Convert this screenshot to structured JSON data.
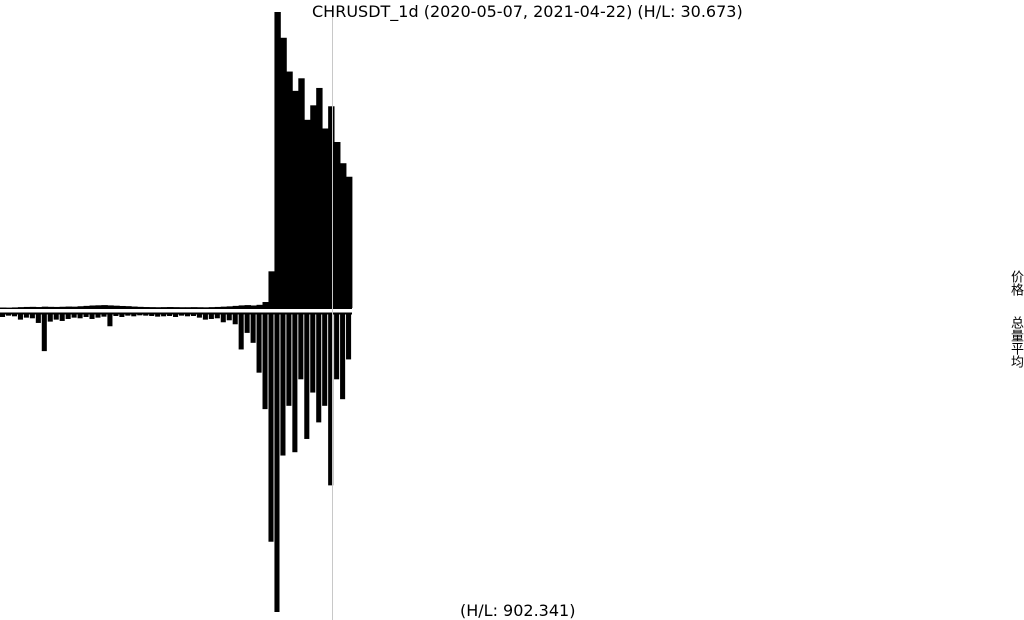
{
  "chart_data": {
    "type": "area",
    "title": "CHRUSDT_1d (2020-05-07, 2021-04-22) (H/L: 30.673)",
    "bottom_label": "(H/L: 902.341)",
    "side_labels": {
      "price": "价格",
      "volume": "总量平均"
    },
    "price_panel": {
      "series": [
        {
          "values": [
            0.05,
            0.04,
            0.06,
            0.09,
            0.11,
            0.12,
            0.1,
            0.14,
            0.12,
            0.11,
            0.13,
            0.15,
            0.14,
            0.18,
            0.22,
            0.26,
            0.28,
            0.3,
            0.27,
            0.24,
            0.21,
            0.19,
            0.15,
            0.12,
            0.1,
            0.09,
            0.08,
            0.09,
            0.1,
            0.09,
            0.08,
            0.08,
            0.09,
            0.08,
            0.07,
            0.09,
            0.11,
            0.14,
            0.17,
            0.22,
            0.27,
            0.3,
            0.26,
            0.33,
            0.62,
            3.8,
            30.67,
            28.0,
            24.5,
            22.5,
            23.8,
            19.5,
            21.0,
            22.8,
            18.6,
            20.9,
            17.2,
            15.0,
            13.6
          ]
        }
      ]
    },
    "volume_panel": {
      "series": [
        {
          "values": [
            12,
            8,
            10,
            20,
            14,
            16,
            30,
            115,
            26,
            20,
            24,
            18,
            14,
            16,
            12,
            18,
            14,
            11,
            40,
            9,
            12,
            8,
            10,
            7,
            8,
            9,
            11,
            10,
            9,
            12,
            8,
            10,
            9,
            14,
            20,
            18,
            16,
            28,
            22,
            34,
            110,
            60,
            90,
            180,
            290,
            690,
            902,
            430,
            280,
            420,
            200,
            380,
            240,
            330,
            280,
            520,
            200,
            260,
            140
          ]
        }
      ]
    },
    "grid": false,
    "legend": "none",
    "colors": {
      "fill": "#000000",
      "marker": "#c8c8c8",
      "background": "#ffffff"
    }
  }
}
